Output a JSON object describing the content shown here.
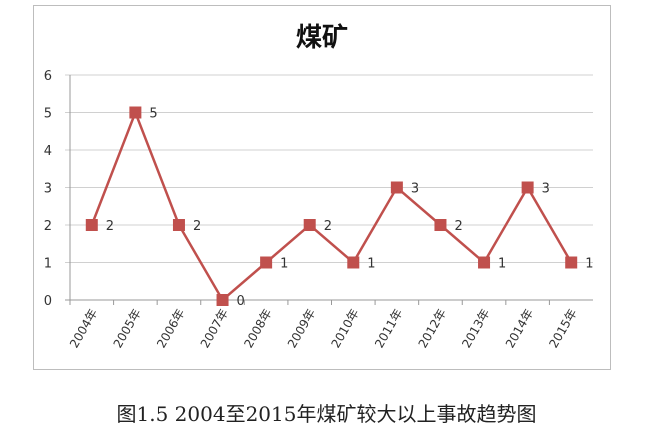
{
  "chart_data": {
    "type": "line",
    "title": "煤矿",
    "categories": [
      "2004年",
      "2005年",
      "2006年",
      "2007年",
      "2008年",
      "2009年",
      "2010年",
      "2011年",
      "2012年",
      "2013年",
      "2014年",
      "2015年"
    ],
    "series": [
      {
        "values": [
          2,
          5,
          2,
          0,
          1,
          2,
          1,
          3,
          2,
          1,
          3,
          1
        ],
        "color": "#c0504d"
      }
    ],
    "ylim": [
      0,
      6
    ],
    "yticks": [
      0,
      1,
      2,
      3,
      4,
      5,
      6
    ],
    "grid": true,
    "data_labels": true,
    "legend": "none"
  },
  "caption": "图1.5 2004至2015年煤矿较大以上事故趋势图"
}
